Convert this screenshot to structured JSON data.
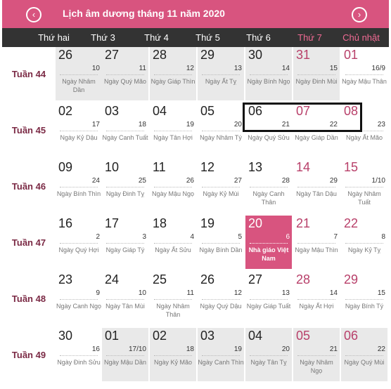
{
  "header": {
    "title": "Lịch âm dương tháng 11 năm 2020",
    "prev": "‹",
    "next": "›"
  },
  "weekdays": [
    {
      "label": "Thứ hai",
      "weekend": false
    },
    {
      "label": "Thứ 3",
      "weekend": false
    },
    {
      "label": "Thứ 4",
      "weekend": false
    },
    {
      "label": "Thứ 5",
      "weekend": false
    },
    {
      "label": "Thứ 6",
      "weekend": false
    },
    {
      "label": "Thứ 7",
      "weekend": true
    },
    {
      "label": "Chủ nhật",
      "weekend": true
    }
  ],
  "weeks": [
    {
      "label": "Tuần 44",
      "days": [
        {
          "solar": "26",
          "lunar": "10",
          "info": "Ngày Nhâm Dần",
          "other": true
        },
        {
          "solar": "27",
          "lunar": "11",
          "info": "Ngày Quý Mão",
          "other": true
        },
        {
          "solar": "28",
          "lunar": "12",
          "info": "Ngày Giáp Thìn",
          "other": true
        },
        {
          "solar": "29",
          "lunar": "13",
          "info": "Ngày Ất Tỵ",
          "other": true
        },
        {
          "solar": "30",
          "lunar": "14",
          "info": "Ngày Bính Ngọ",
          "other": true
        },
        {
          "solar": "31",
          "lunar": "15",
          "info": "Ngày Đinh Mùi",
          "other": true,
          "weekend": true
        },
        {
          "solar": "01",
          "lunar": "16/9",
          "info": "Ngày Mậu Thân",
          "weekend": true
        }
      ]
    },
    {
      "label": "Tuần 45",
      "days": [
        {
          "solar": "02",
          "lunar": "17",
          "info": "Ngày Kỷ Dậu"
        },
        {
          "solar": "03",
          "lunar": "18",
          "info": "Ngày Canh Tuất"
        },
        {
          "solar": "04",
          "lunar": "19",
          "info": "Ngày Tân Hợi"
        },
        {
          "solar": "05",
          "lunar": "20",
          "info": "Ngày Nhâm Tý"
        },
        {
          "solar": "06",
          "lunar": "21",
          "info": "Ngày Quý Sửu"
        },
        {
          "solar": "07",
          "lunar": "22",
          "info": "Ngày Giáp Dần",
          "weekend": true
        },
        {
          "solar": "08",
          "lunar": "23",
          "info": "Ngày Ất Mão",
          "weekend": true
        }
      ]
    },
    {
      "label": "Tuần 46",
      "days": [
        {
          "solar": "09",
          "lunar": "24",
          "info": "Ngày Bính Thìn"
        },
        {
          "solar": "10",
          "lunar": "25",
          "info": "Ngày Đinh Tỵ"
        },
        {
          "solar": "11",
          "lunar": "26",
          "info": "Ngày Mậu Ngọ"
        },
        {
          "solar": "12",
          "lunar": "27",
          "info": "Ngày Kỷ Mùi"
        },
        {
          "solar": "13",
          "lunar": "28",
          "info": "Ngày Canh Thân"
        },
        {
          "solar": "14",
          "lunar": "29",
          "info": "Ngày Tân Dậu",
          "weekend": true
        },
        {
          "solar": "15",
          "lunar": "1/10",
          "info": "Ngày Nhâm Tuất",
          "weekend": true
        }
      ]
    },
    {
      "label": "Tuần 47",
      "days": [
        {
          "solar": "16",
          "lunar": "2",
          "info": "Ngày Quý Hợi"
        },
        {
          "solar": "17",
          "lunar": "3",
          "info": "Ngày Giáp Tý"
        },
        {
          "solar": "18",
          "lunar": "4",
          "info": "Ngày Ất Sửu"
        },
        {
          "solar": "19",
          "lunar": "5",
          "info": "Ngày Bính Dần"
        },
        {
          "solar": "20",
          "lunar": "6",
          "info": "Nhà giáo Việt Nam",
          "holiday": true
        },
        {
          "solar": "21",
          "lunar": "7",
          "info": "Ngày Mậu Thìn",
          "weekend": true
        },
        {
          "solar": "22",
          "lunar": "8",
          "info": "Ngày Kỷ Tỵ",
          "weekend": true
        }
      ]
    },
    {
      "label": "Tuần 48",
      "days": [
        {
          "solar": "23",
          "lunar": "9",
          "info": "Ngày Canh Ngọ"
        },
        {
          "solar": "24",
          "lunar": "10",
          "info": "Ngày Tân Mùi"
        },
        {
          "solar": "25",
          "lunar": "11",
          "info": "Ngày Nhâm Thân"
        },
        {
          "solar": "26",
          "lunar": "12",
          "info": "Ngày Quý Dậu"
        },
        {
          "solar": "27",
          "lunar": "13",
          "info": "Ngày Giáp Tuất"
        },
        {
          "solar": "28",
          "lunar": "14",
          "info": "Ngày Ất Hợi",
          "weekend": true
        },
        {
          "solar": "29",
          "lunar": "15",
          "info": "Ngày Bính Tý",
          "weekend": true
        }
      ]
    },
    {
      "label": "Tuần 49",
      "days": [
        {
          "solar": "30",
          "lunar": "16",
          "info": "Ngày Đinh Sửu"
        },
        {
          "solar": "01",
          "lunar": "17/10",
          "info": "Ngày Mậu Dần",
          "other": true
        },
        {
          "solar": "02",
          "lunar": "18",
          "info": "Ngày Kỷ Mão",
          "other": true
        },
        {
          "solar": "03",
          "lunar": "19",
          "info": "Ngày Canh Thìn",
          "other": true
        },
        {
          "solar": "04",
          "lunar": "20",
          "info": "Ngày Tân Tỵ",
          "other": true
        },
        {
          "solar": "05",
          "lunar": "21",
          "info": "Ngày Nhâm Ngọ",
          "other": true,
          "weekend": true
        },
        {
          "solar": "06",
          "lunar": "22",
          "info": "Ngày Quý Mùi",
          "other": true,
          "weekend": true
        }
      ]
    }
  ]
}
